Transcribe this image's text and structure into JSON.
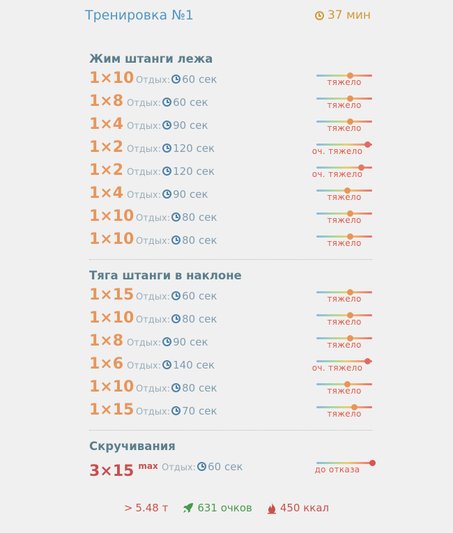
{
  "header": {
    "title": "Тренировка №1",
    "duration": "37 мин"
  },
  "colors": {
    "reps": "#e8955a",
    "reps_failure": "#c84f4f",
    "accent_blue": "#4f96c4",
    "accent_gold": "#cf9a38"
  },
  "exercises": [
    {
      "name": "Жим штанги лежа",
      "sets": [
        {
          "reps": "1×10",
          "rest_label": "Отдых:",
          "rest": "60 сек",
          "intensity": "тяжело",
          "level": 0.6,
          "dot": "#e8955a"
        },
        {
          "reps": "1×8",
          "rest_label": "Отдых:",
          "rest": "60 сек",
          "intensity": "тяжело",
          "level": 0.6,
          "dot": "#e8955a"
        },
        {
          "reps": "1×4",
          "rest_label": "Отдых:",
          "rest": "90 сек",
          "intensity": "тяжело",
          "level": 0.6,
          "dot": "#e8955a"
        },
        {
          "reps": "1×2",
          "rest_label": "Отдых:",
          "rest": "120 сек",
          "intensity": "оч. тяжело",
          "level": 0.92,
          "dot": "#e06b66"
        },
        {
          "reps": "1×2",
          "rest_label": "Отдых:",
          "rest": "120 сек",
          "intensity": "оч. тяжело",
          "level": 0.8,
          "dot": "#e07a60"
        },
        {
          "reps": "1×4",
          "rest_label": "Отдых:",
          "rest": "90 сек",
          "intensity": "тяжело",
          "level": 0.55,
          "dot": "#e8955a"
        },
        {
          "reps": "1×10",
          "rest_label": "Отдых:",
          "rest": "80 сек",
          "intensity": "тяжело",
          "level": 0.6,
          "dot": "#e8955a"
        },
        {
          "reps": "1×10",
          "rest_label": "Отдых:",
          "rest": "80 сек",
          "intensity": "тяжело",
          "level": 0.6,
          "dot": "#e8955a"
        }
      ]
    },
    {
      "name": "Тяга штанги в наклоне",
      "sets": [
        {
          "reps": "1×15",
          "rest_label": "Отдых:",
          "rest": "60 сек",
          "intensity": "тяжело",
          "level": 0.6,
          "dot": "#e8955a"
        },
        {
          "reps": "1×10",
          "rest_label": "Отдых:",
          "rest": "80 сек",
          "intensity": "тяжело",
          "level": 0.6,
          "dot": "#e8955a"
        },
        {
          "reps": "1×8",
          "rest_label": "Отдых:",
          "rest": "90 сек",
          "intensity": "тяжело",
          "level": 0.6,
          "dot": "#e8955a"
        },
        {
          "reps": "1×6",
          "rest_label": "Отдых:",
          "rest": "140 сек",
          "intensity": "оч. тяжело",
          "level": 0.92,
          "dot": "#e06b66"
        },
        {
          "reps": "1×10",
          "rest_label": "Отдых:",
          "rest": "80 сек",
          "intensity": "тяжело",
          "level": 0.55,
          "dot": "#e8955a"
        },
        {
          "reps": "1×15",
          "rest_label": "Отдых:",
          "rest": "70 сек",
          "intensity": "тяжело",
          "level": 0.68,
          "dot": "#e8955a"
        }
      ]
    },
    {
      "name": "Скручивания",
      "sets": [
        {
          "reps": "3×15",
          "reps_sup": "max",
          "failure": true,
          "rest_label": "Отдых:",
          "rest": "60 сек",
          "intensity": "до отказа",
          "level": 1.0,
          "dot": "#d9534f"
        }
      ]
    }
  ],
  "footer": {
    "weight_icon": "greater-than-icon",
    "weight": "5.48 т",
    "points_icon": "rocket-icon",
    "points": "631 очков",
    "kcal_icon": "flame-icon",
    "kcal": "450 ккал"
  }
}
